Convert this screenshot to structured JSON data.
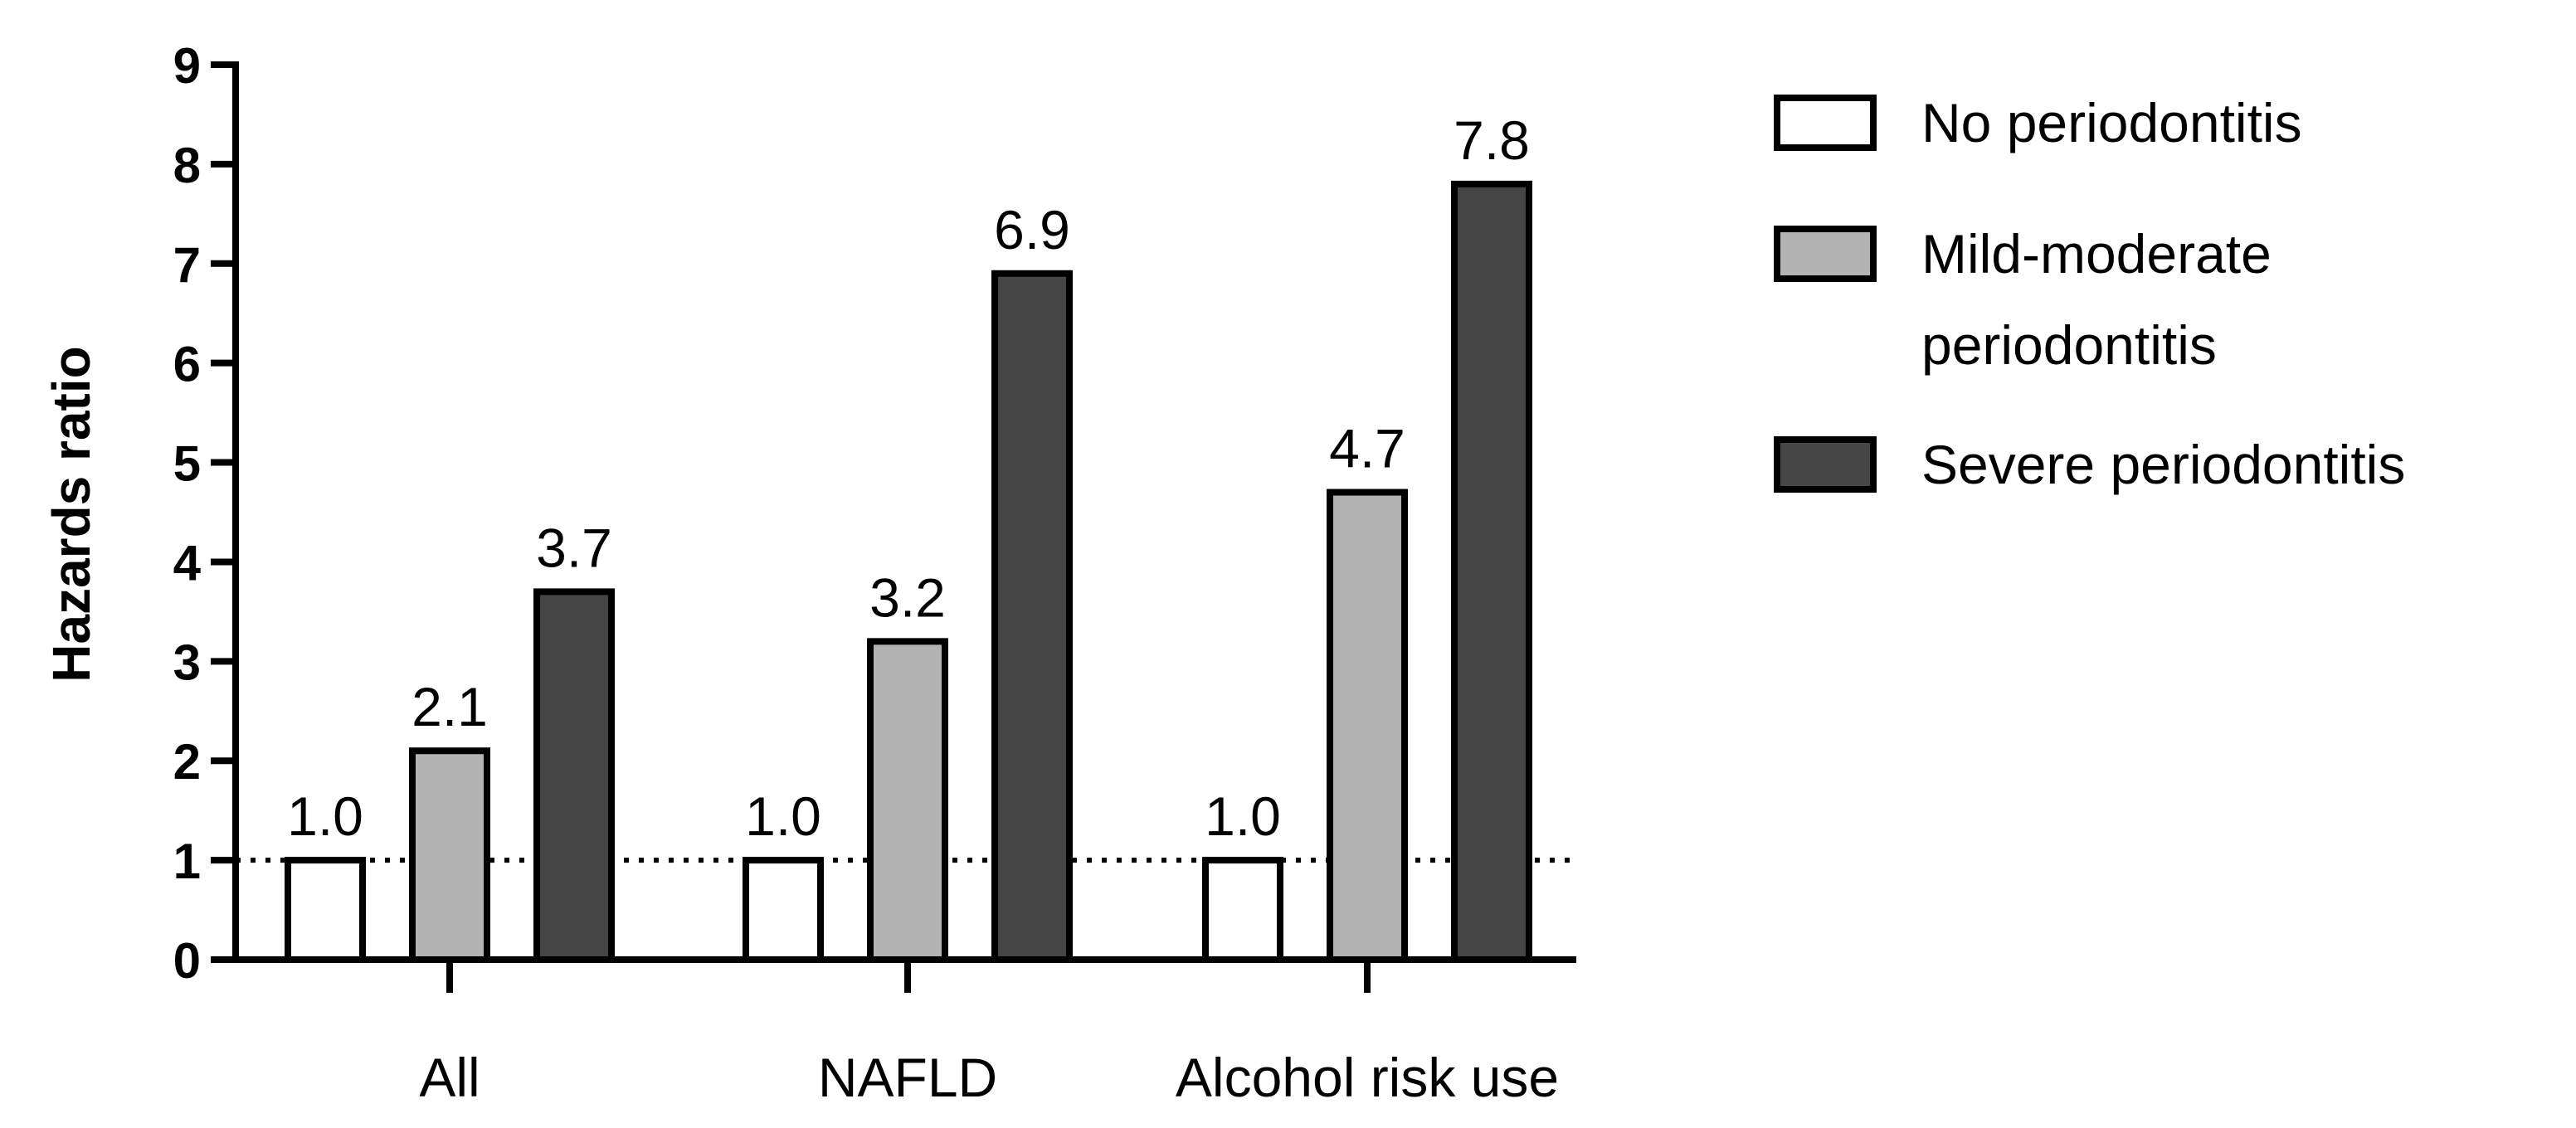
{
  "chart_data": {
    "type": "bar",
    "title": "",
    "xlabel": "",
    "ylabel": "Hazards ratio",
    "ylim": [
      0,
      9
    ],
    "yticks": [
      0,
      1,
      2,
      3,
      4,
      5,
      6,
      7,
      8,
      9
    ],
    "reference_line": 1,
    "categories": [
      "All",
      "NAFLD",
      "Alcohol risk use"
    ],
    "series": [
      {
        "name": "No periodontitis",
        "color": "#ffffff",
        "values": [
          1.0,
          1.0,
          1.0
        ],
        "labels": [
          "1.0",
          "1.0",
          "1.0"
        ]
      },
      {
        "name": "Mild-moderate periodontitis",
        "color": "#b3b3b3",
        "values": [
          2.1,
          3.2,
          4.7
        ],
        "labels": [
          "2.1",
          "3.2",
          "4.7"
        ]
      },
      {
        "name": "Severe periodontitis",
        "color": "#454545",
        "values": [
          3.7,
          6.9,
          7.8
        ],
        "labels": [
          "3.7",
          "6.9",
          "7.8"
        ]
      }
    ],
    "legend": {
      "position": "right",
      "entries": [
        {
          "lines": [
            "No periodontitis"
          ]
        },
        {
          "lines": [
            "Mild-moderate",
            "periodontitis"
          ]
        },
        {
          "lines": [
            "Severe periodontitis"
          ]
        }
      ]
    }
  }
}
